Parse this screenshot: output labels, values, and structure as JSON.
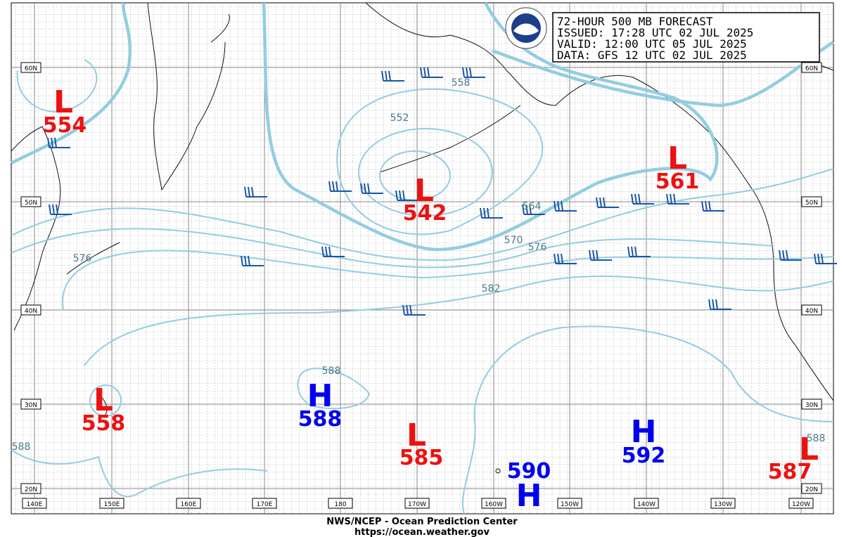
{
  "header": {
    "lines": [
      "72-HOUR 500 MB FORECAST",
      "ISSUED: 17:28 UTC 02 JUL 2025",
      "VALID: 12:00 UTC 05 JUL 2025",
      "DATA: GFS 12 UTC 02 JUL 2025"
    ]
  },
  "centers": [
    {
      "symbol": "L",
      "value": 554
    },
    {
      "symbol": "L",
      "value": 542
    },
    {
      "symbol": "L",
      "value": 561
    },
    {
      "symbol": "L",
      "value": 558
    },
    {
      "symbol": "H",
      "value": 588
    },
    {
      "symbol": "L",
      "value": 585
    },
    {
      "symbol": "H",
      "value": 592
    },
    {
      "symbol": "L",
      "value": 587
    },
    {
      "symbol": "H",
      "value": 590
    }
  ],
  "contour_labels": [
    558,
    552,
    564,
    570,
    576,
    582,
    576,
    588,
    588,
    588
  ],
  "lat_labels": [
    "60N",
    "50N",
    "40N",
    "30N",
    "20N"
  ],
  "lon_labels": [
    "140E",
    "150E",
    "160E",
    "170E",
    "180",
    "170W",
    "160W",
    "150W",
    "140W",
    "130W",
    "120W"
  ],
  "footer": [
    "NWS/NCEP - Ocean Prediction Center",
    "https://ocean.weather.gov"
  ]
}
